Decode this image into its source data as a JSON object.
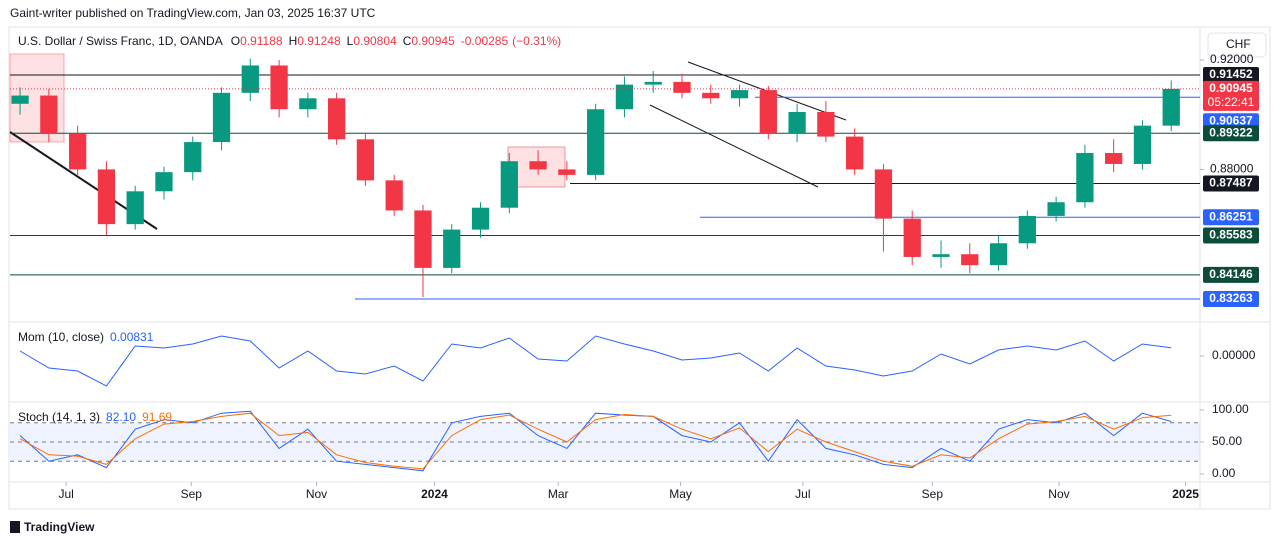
{
  "header": {
    "publisher": "Gaint-writer published on TradingView.com, Jan 03, 2025 16:37 UTC",
    "currency": "CHF",
    "brand": "TradingView"
  },
  "chart_data": [
    {
      "type": "candlestick",
      "title": "U.S. Dollar / Swiss Franc, 1D, OANDA",
      "ohlc_legend": {
        "o_label": "O",
        "open": 0.91188,
        "h_label": "H",
        "high": 0.91248,
        "l_label": "L",
        "low": 0.90804,
        "c_label": "C",
        "close": 0.90945,
        "change": -0.00285,
        "change_pct": {
          "value": -0.31,
          "label": "(−0.31%)"
        }
      },
      "x": [
        0,
        2,
        4,
        6,
        8,
        10,
        12,
        14,
        16,
        18,
        20,
        22,
        24,
        26,
        28,
        30,
        32,
        34,
        36,
        38,
        40,
        42,
        44,
        46,
        48,
        50,
        52,
        54,
        56,
        58,
        60,
        62,
        64,
        66,
        68,
        70,
        72,
        74,
        76,
        78,
        80
      ],
      "open": [
        0.904,
        0.907,
        0.893,
        0.88,
        0.86,
        0.872,
        0.879,
        0.89,
        0.908,
        0.918,
        0.902,
        0.906,
        0.891,
        0.876,
        0.865,
        0.844,
        0.858,
        0.866,
        0.883,
        0.88,
        0.878,
        0.902,
        0.911,
        0.912,
        0.908,
        0.906,
        0.909,
        0.893,
        0.901,
        0.892,
        0.88,
        0.862,
        0.848,
        0.849,
        0.845,
        0.853,
        0.863,
        0.868,
        0.886,
        0.882,
        0.896
      ],
      "high": [
        0.91,
        0.9095,
        0.896,
        0.883,
        0.874,
        0.881,
        0.892,
        0.91,
        0.9205,
        0.92,
        0.908,
        0.908,
        0.893,
        0.878,
        0.867,
        0.86,
        0.868,
        0.886,
        0.887,
        0.883,
        0.904,
        0.914,
        0.916,
        0.915,
        0.911,
        0.911,
        0.9105,
        0.904,
        0.905,
        0.895,
        0.882,
        0.865,
        0.854,
        0.853,
        0.856,
        0.865,
        0.87,
        0.889,
        0.891,
        0.898,
        0.9125
      ],
      "low": [
        0.9,
        0.89,
        0.878,
        0.856,
        0.858,
        0.869,
        0.876,
        0.887,
        0.905,
        0.899,
        0.899,
        0.889,
        0.874,
        0.863,
        0.8333,
        0.842,
        0.855,
        0.864,
        0.878,
        0.876,
        0.876,
        0.899,
        0.908,
        0.906,
        0.904,
        0.903,
        0.891,
        0.89,
        0.89,
        0.878,
        0.85,
        0.845,
        0.844,
        0.842,
        0.843,
        0.851,
        0.861,
        0.866,
        0.879,
        0.88,
        0.894
      ],
      "close": [
        0.907,
        0.893,
        0.88,
        0.86,
        0.872,
        0.879,
        0.89,
        0.908,
        0.918,
        0.902,
        0.906,
        0.891,
        0.876,
        0.865,
        0.844,
        0.858,
        0.866,
        0.883,
        0.88,
        0.878,
        0.902,
        0.911,
        0.912,
        0.908,
        0.906,
        0.909,
        0.893,
        0.901,
        0.892,
        0.88,
        0.862,
        0.848,
        0.849,
        0.845,
        0.853,
        0.863,
        0.868,
        0.886,
        0.882,
        0.896,
        0.90945
      ],
      "up_color": "#089981",
      "down_color": "#f23645",
      "xlim": [
        -0.7,
        82
      ],
      "xticks": [
        {
          "value": 3.2,
          "label": "Jul"
        },
        {
          "value": 11.9,
          "label": "Sep"
        },
        {
          "value": 20.6,
          "label": "Nov"
        },
        {
          "value": 28.8,
          "label": "2024"
        },
        {
          "value": 37.4,
          "label": "Mar"
        },
        {
          "value": 45.9,
          "label": "May"
        },
        {
          "value": 54.4,
          "label": "Jul"
        },
        {
          "value": 63.4,
          "label": "Sep"
        },
        {
          "value": 72.2,
          "label": "Nov"
        },
        {
          "value": 81.0,
          "label": "2025"
        }
      ],
      "ylim": [
        0.82422,
        0.9317
      ],
      "yticks": [
        {
          "value": 0.92,
          "label": "0.92000"
        },
        {
          "value": 0.88,
          "label": "0.88000"
        }
      ],
      "levels": [
        {
          "value": 0.91452,
          "color": "#131722"
        },
        {
          "value": 0.90637,
          "color": "#2962ff"
        },
        {
          "value": 0.89322,
          "color": "#0b4d3a"
        },
        {
          "value": 0.87487,
          "color": "#131722"
        },
        {
          "value": 0.86251,
          "color": "#2962ff"
        },
        {
          "value": 0.85583,
          "color": "#0b4d3a"
        },
        {
          "value": 0.84146,
          "color": "#0b4d3a"
        },
        {
          "value": 0.83263,
          "color": "#2962ff"
        }
      ],
      "current": {
        "value": 0.90945,
        "countdown": "05:22:41",
        "color": "#f23645"
      }
    },
    {
      "type": "line",
      "title": "Mom (10, close)",
      "last": 0.00831,
      "x": [
        0,
        2,
        4,
        6,
        8,
        10,
        12,
        14,
        16,
        18,
        20,
        22,
        24,
        26,
        28,
        30,
        32,
        34,
        36,
        38,
        40,
        42,
        44,
        46,
        48,
        50,
        52,
        54,
        56,
        58,
        60,
        62,
        64,
        66,
        68,
        70,
        72,
        74,
        76,
        78,
        80
      ],
      "series": [
        {
          "color": "#2962ff",
          "values": [
            0.005,
            -0.012,
            -0.015,
            -0.03,
            0.01,
            0.008,
            0.012,
            0.02,
            0.015,
            -0.012,
            0.005,
            -0.015,
            -0.018,
            -0.01,
            -0.025,
            0.012,
            0.008,
            0.018,
            -0.003,
            -0.005,
            0.02,
            0.012,
            0.005,
            -0.004,
            -0.002,
            0.003,
            -0.015,
            0.008,
            -0.01,
            -0.014,
            -0.02,
            -0.015,
            0.002,
            -0.008,
            0.006,
            0.01,
            0.006,
            0.015,
            -0.005,
            0.012,
            0.00831
          ]
        }
      ],
      "ylim": [
        -0.046,
        0.034
      ],
      "yticks": [
        {
          "value": 0,
          "label": "0.00000"
        }
      ]
    },
    {
      "type": "line",
      "title": "Stoch (14, 1, 3)",
      "x": [
        0,
        2,
        4,
        6,
        8,
        10,
        12,
        14,
        16,
        18,
        20,
        22,
        24,
        26,
        28,
        30,
        32,
        34,
        36,
        38,
        40,
        42,
        44,
        46,
        48,
        50,
        52,
        54,
        56,
        58,
        60,
        62,
        64,
        66,
        68,
        70,
        72,
        74,
        76,
        78,
        80
      ],
      "series": [
        {
          "color": "#2962ff",
          "last": {
            "value": 82.1,
            "label": "82.10"
          },
          "values": [
            60,
            20,
            30,
            10,
            70,
            85,
            80,
            95,
            98,
            40,
            70,
            20,
            15,
            10,
            5,
            80,
            90,
            95,
            60,
            40,
            95,
            92,
            90,
            60,
            50,
            80,
            20,
            85,
            40,
            30,
            15,
            10,
            40,
            20,
            70,
            85,
            80,
            95,
            60,
            95,
            82.1
          ]
        },
        {
          "color": "#ff6d00",
          "last": {
            "value": 91.69,
            "label": "91.69"
          },
          "values": [
            55,
            30,
            28,
            15,
            55,
            78,
            82,
            90,
            95,
            60,
            65,
            30,
            18,
            12,
            8,
            60,
            85,
            92,
            70,
            50,
            85,
            93,
            90,
            70,
            55,
            72,
            35,
            70,
            50,
            35,
            20,
            12,
            30,
            25,
            55,
            78,
            82,
            90,
            70,
            88,
            91.69
          ]
        }
      ],
      "bands": {
        "lower": 20,
        "middle": 50,
        "upper": 80
      },
      "ylim": [
        -12.5,
        112.5
      ],
      "yticks": [
        {
          "value": 100,
          "label": "100.00"
        },
        {
          "value": 50,
          "label": "50.00"
        },
        {
          "value": 0,
          "label": "0.00"
        }
      ]
    }
  ]
}
